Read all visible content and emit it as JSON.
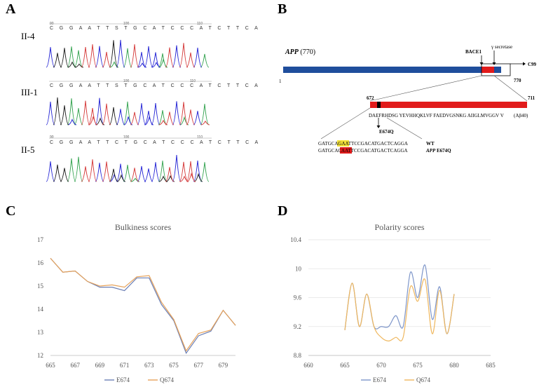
{
  "panels": {
    "a": "A",
    "b": "B",
    "c": "C",
    "d": "D"
  },
  "panel_a": {
    "traces": [
      {
        "label": "II-4",
        "sequence": "C G G A A T T S T G C A T C C C A T C T T C A",
        "pos_left": "90",
        "pos_mid": "100",
        "pos_right": "110"
      },
      {
        "label": "III-1",
        "sequence": "C G G A A T T S T G C A T C C C A T C T T C A",
        "pos_left": "",
        "pos_mid": "100",
        "pos_right": "110"
      },
      {
        "label": "II-5",
        "sequence": "C G G A A T T C T G C A T C C C A T C T T C A",
        "pos_left": "90",
        "pos_mid": "100",
        "pos_right": "110"
      }
    ],
    "colors": {
      "A": "#3aa655",
      "C": "#2b2bd6",
      "G": "#222222",
      "T": "#d64040"
    }
  },
  "panel_b": {
    "protein_label_italic": "APP",
    "protein_label_rest": " (770)",
    "start_num": "1",
    "end_num": "770",
    "bace1": "BACE1",
    "gamma": "γ secretase",
    "c99": "C99",
    "ab_start": "672",
    "ab_end": "711",
    "ab_sequence": "DAEFRHDSG YEVHHQKLVF FAEDVGSNKG AIIGLMVGGV  V",
    "ab_suffix": "(Aβ40)",
    "mutation": "E674Q",
    "wt_prefix": "GATGCA",
    "wt_highlight": "GAA",
    "wt_suffix": "TTCCGACATGACTCAGGA",
    "wt_label": "WT",
    "mut_prefix": "GATGCA",
    "mut_highlight": "CAA",
    "mut_suffix": "TTCCGACATGACTCAGGA",
    "mut_label_italic": "APP",
    "mut_label_rest": " E674Q",
    "colors": {
      "blue": "#1f4e9c",
      "red": "#e11b1b",
      "yellow": "#f4e23a",
      "black": "#000000"
    }
  },
  "chart_data": [
    {
      "type": "line",
      "title": "Bulkiness scores",
      "x": [
        665,
        666,
        667,
        668,
        669,
        670,
        671,
        672,
        673,
        674,
        675,
        676,
        677,
        678,
        679,
        680
      ],
      "xticks": [
        "665",
        "667",
        "669",
        "671",
        "673",
        "675",
        "677",
        "679"
      ],
      "ylim": [
        12,
        17
      ],
      "yticks": [
        "12",
        "13",
        "14",
        "15",
        "16",
        "17"
      ],
      "series": [
        {
          "name": "E674",
          "color": "#6b7fb5",
          "values": [
            16.2,
            15.6,
            15.65,
            15.2,
            14.95,
            14.95,
            14.8,
            15.35,
            15.35,
            14.2,
            13.5,
            12.1,
            12.85,
            13.05,
            13.95,
            13.3
          ]
        },
        {
          "name": "Q674",
          "color": "#e6a25a",
          "values": [
            16.2,
            15.6,
            15.65,
            15.2,
            15.0,
            15.05,
            14.95,
            15.4,
            15.45,
            14.3,
            13.55,
            12.2,
            12.95,
            13.1,
            13.95,
            13.3
          ]
        }
      ]
    },
    {
      "type": "line",
      "title": "Polarity scores",
      "x": [
        665,
        666,
        667,
        668,
        669,
        670,
        671,
        672,
        673,
        674,
        675,
        676,
        677,
        678,
        679,
        680
      ],
      "xticks": [
        "660",
        "665",
        "670",
        "675",
        "680",
        "685"
      ],
      "xlim": [
        660,
        685
      ],
      "ylim": [
        8.8,
        10.4
      ],
      "yticks": [
        "8.8",
        "9.2",
        "9.6",
        "10",
        "10.4"
      ],
      "series": [
        {
          "name": "E674",
          "color": "#7d95c9",
          "values": [
            9.15,
            9.8,
            9.2,
            9.65,
            9.2,
            9.2,
            9.2,
            9.35,
            9.2,
            9.95,
            9.6,
            10.05,
            9.3,
            9.75,
            9.1,
            9.65
          ]
        },
        {
          "name": "Q674",
          "color": "#efb75e",
          "values": [
            9.15,
            9.8,
            9.2,
            9.65,
            9.2,
            9.05,
            9.0,
            9.05,
            9.05,
            9.75,
            9.55,
            9.85,
            9.1,
            9.7,
            9.1,
            9.65
          ]
        }
      ]
    }
  ]
}
